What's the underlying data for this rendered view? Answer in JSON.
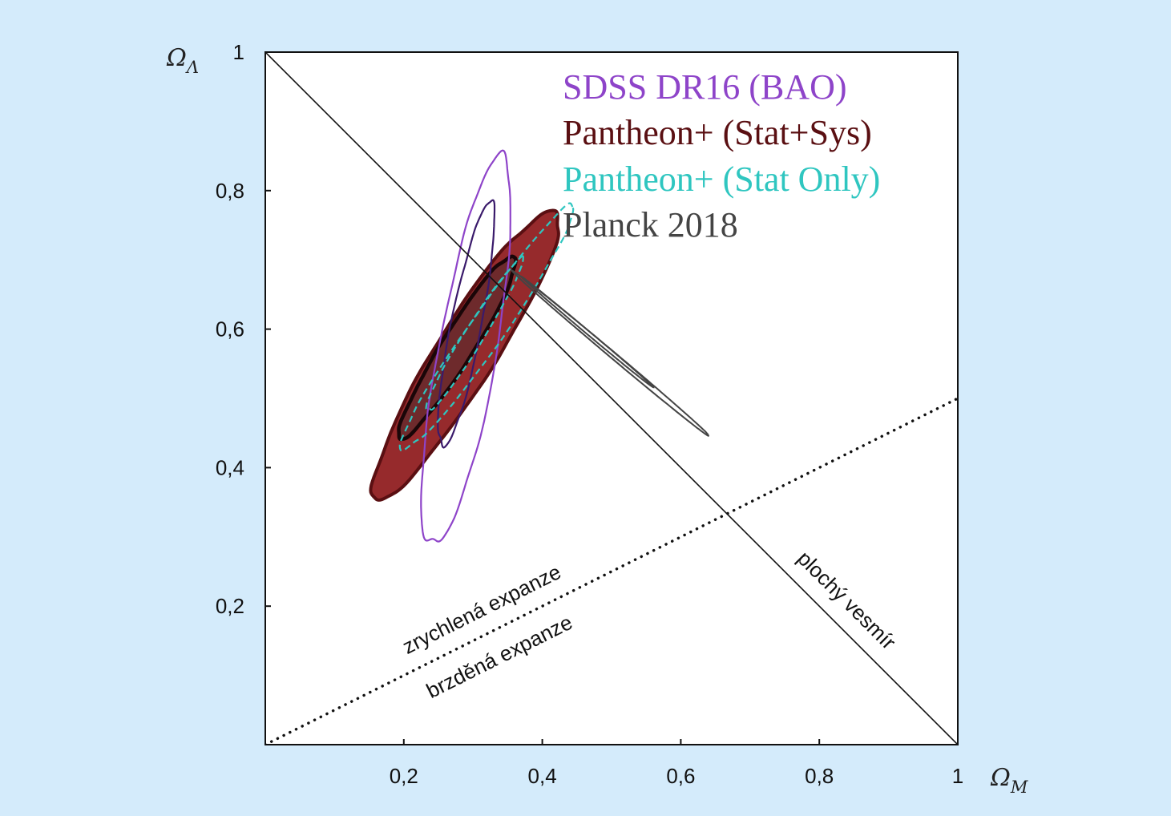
{
  "chart_data": {
    "type": "contour",
    "xlabel": {
      "symbol": "Ω",
      "sub": "M"
    },
    "ylabel": {
      "symbol": "Ω",
      "sub": "Λ"
    },
    "xlim": [
      0,
      1
    ],
    "ylim": [
      0,
      1
    ],
    "xticks": [
      {
        "value": 0.2,
        "label": "0,2"
      },
      {
        "value": 0.4,
        "label": "0,4"
      },
      {
        "value": 0.6,
        "label": "0,6"
      },
      {
        "value": 0.8,
        "label": "0,8"
      },
      {
        "value": 1.0,
        "label": "1"
      }
    ],
    "yticks": [
      {
        "value": 0.2,
        "label": "0,2"
      },
      {
        "value": 0.4,
        "label": "0,4"
      },
      {
        "value": 0.6,
        "label": "0,6"
      },
      {
        "value": 0.8,
        "label": "0,8"
      },
      {
        "value": 1.0,
        "label": "1"
      }
    ],
    "legend_position": "top-right",
    "series": [
      {
        "name": "SDSS DR16 (BAO)",
        "color": "#8e44c9",
        "style": "line",
        "contours": [
          {
            "level": "2σ",
            "color": "#8e44c9",
            "center": [
              0.291,
              0.565
            ],
            "semi_major": 0.285,
            "semi_minor": 0.042,
            "angle_deg": 80
          },
          {
            "level": "1σ",
            "color": "#3a1a6b",
            "center": [
              0.29,
              0.605
            ],
            "semi_major": 0.18,
            "semi_minor": 0.022,
            "angle_deg": 79
          }
        ]
      },
      {
        "name": "Pantheon+ (Stat+Sys)",
        "color": "#5a0f12",
        "style": "filled",
        "fill_outer": "#962a2c",
        "fill_inner": "#6e2a2c",
        "contours": [
          {
            "level": "2σ",
            "center": [
              0.29,
              0.565
            ],
            "semi_major": 0.245,
            "semi_minor": 0.043,
            "angle_deg": 58
          },
          {
            "level": "1σ",
            "center": [
              0.278,
              0.575
            ],
            "semi_major": 0.155,
            "semi_minor": 0.023,
            "angle_deg": 58
          }
        ]
      },
      {
        "name": "Pantheon+ (Stat Only)",
        "color": "#2fc6c0",
        "style": "dashed",
        "contours": [
          {
            "level": "2σ",
            "center": [
              0.32,
              0.6
            ],
            "semi_major": 0.215,
            "semi_minor": 0.025,
            "angle_deg": 55
          },
          {
            "level": "1σ",
            "center": [
              0.301,
              0.59
            ],
            "semi_major": 0.13,
            "semi_minor": 0.014,
            "angle_deg": 58
          }
        ]
      },
      {
        "name": "Planck 2018",
        "color": "#444444",
        "style": "line",
        "contours": [
          {
            "level": "2σ",
            "center": [
              0.5,
              0.564
            ],
            "semi_major": 0.185,
            "semi_minor": 0.0045,
            "angle_deg": -40
          },
          {
            "level": "1σ",
            "center": [
              0.466,
              0.595
            ],
            "semi_major": 0.124,
            "semi_minor": 0.0025,
            "angle_deg": -40
          }
        ]
      }
    ],
    "reference_lines": [
      {
        "name": "flat",
        "points": [
          [
            0,
            1
          ],
          [
            1,
            0
          ]
        ],
        "style": "solid",
        "label": "plochý vesmír"
      },
      {
        "name": "acceleration",
        "points": [
          [
            0,
            0
          ],
          [
            1,
            0.5
          ]
        ],
        "style": "dotted",
        "label_above": "zrychlená expanze",
        "label_below": "brzděná expanze"
      }
    ]
  }
}
